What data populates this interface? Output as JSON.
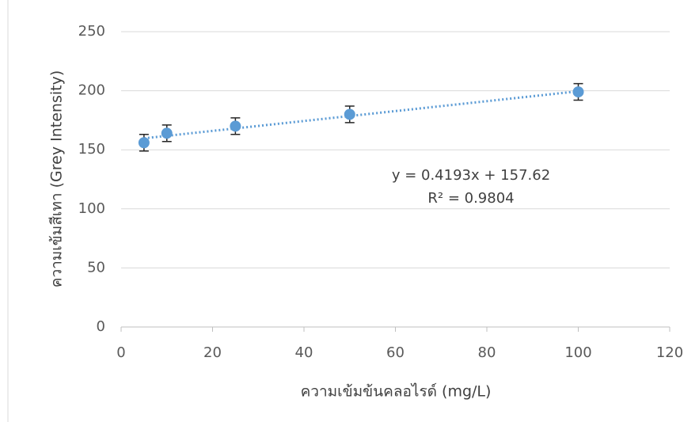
{
  "chart_data": {
    "type": "scatter",
    "x_label": "ความเข้มข้นคลอไรด์ (mg/L)",
    "y_label": "ความเข้มสีเทา (Grey Intensity)",
    "series": [
      {
        "color": "#5b9bd5",
        "x": [
          5,
          10,
          25,
          50,
          100
        ],
        "values": [
          156,
          164,
          170,
          180,
          199
        ],
        "errors": [
          7,
          7,
          7,
          7,
          7
        ]
      }
    ],
    "trendline": {
      "slope": 0.4193,
      "intercept": 157.62,
      "color": "#5b9bd5",
      "equation": "y = 0.4193x + 157.62",
      "r_squared": "R² = 0.9804"
    },
    "xlim": [
      0,
      120
    ],
    "xticks": [
      0,
      20,
      40,
      60,
      80,
      100,
      120
    ],
    "ylim": [
      0,
      250
    ],
    "yticks": [
      0,
      50,
      100,
      150,
      200,
      250
    ],
    "grid": true
  }
}
